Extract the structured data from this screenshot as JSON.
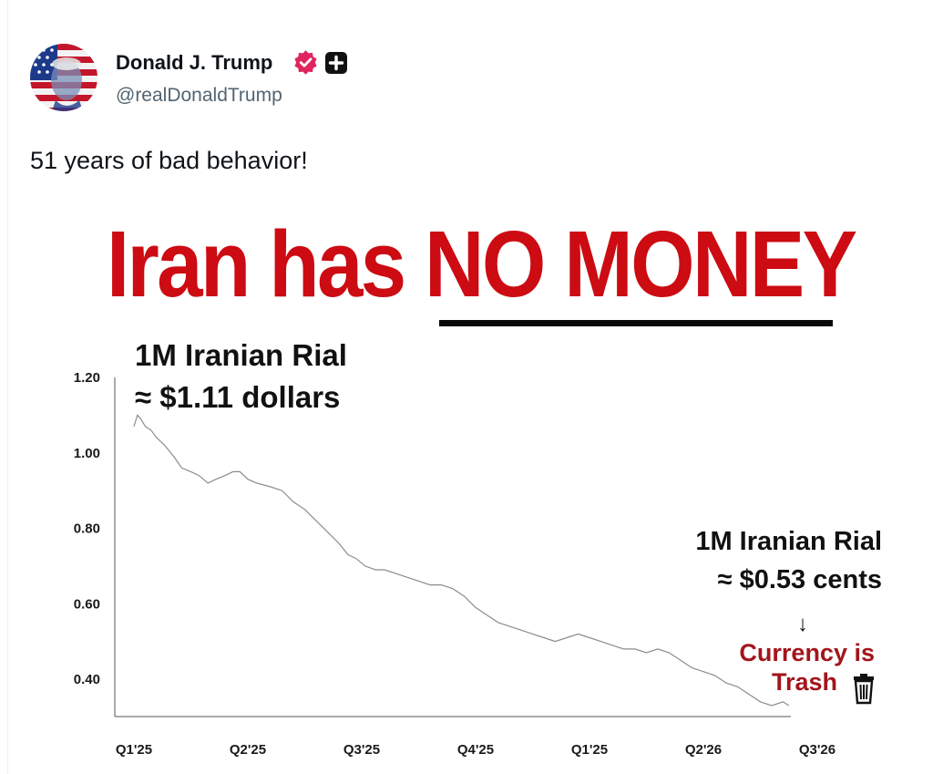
{
  "post": {
    "author_name": "Donald J. Trump",
    "author_handle": "@realDonaldTrump",
    "text": "51 years of bad behavior!",
    "badges": [
      "verified-badge-icon",
      "plus-badge-icon"
    ],
    "colors": {
      "verified": "#e0245e",
      "plus": "#111111",
      "handle": "#536471"
    }
  },
  "image": {
    "headline_prefix": "Iran has ",
    "headline_emphasis": "NO MONEY",
    "headline_color": "#cc0b12"
  },
  "chart_data": {
    "type": "line",
    "title": "",
    "xlabel": "",
    "ylabel": "",
    "x_ticks": [
      "Q1'25",
      "Q2'25",
      "Q3'25",
      "Q4'25",
      "Q1'25",
      "Q2'26",
      "Q3'26"
    ],
    "y_ticks": [
      "1.20",
      "1.00",
      "0.80",
      "0.60",
      "0.40"
    ],
    "ylim": [
      0.29,
      1.2
    ],
    "grid": false,
    "line_color": "#8c8c8c",
    "series": [
      {
        "values": [
          [
            0.0,
            1.07
          ],
          [
            0.03,
            1.1
          ],
          [
            0.06,
            1.09
          ],
          [
            0.1,
            1.07
          ],
          [
            0.15,
            1.06
          ],
          [
            0.2,
            1.04
          ],
          [
            0.27,
            1.02
          ],
          [
            0.35,
            0.99
          ],
          [
            0.42,
            0.96
          ],
          [
            0.5,
            0.95
          ],
          [
            0.57,
            0.94
          ],
          [
            0.65,
            0.92
          ],
          [
            0.72,
            0.93
          ],
          [
            0.8,
            0.94
          ],
          [
            0.87,
            0.95
          ],
          [
            0.93,
            0.95
          ],
          [
            1.0,
            0.93
          ],
          [
            1.08,
            0.92
          ],
          [
            1.2,
            0.91
          ],
          [
            1.3,
            0.9
          ],
          [
            1.4,
            0.87
          ],
          [
            1.5,
            0.85
          ],
          [
            1.6,
            0.82
          ],
          [
            1.7,
            0.79
          ],
          [
            1.8,
            0.76
          ],
          [
            1.88,
            0.73
          ],
          [
            1.95,
            0.72
          ],
          [
            2.03,
            0.7
          ],
          [
            2.12,
            0.69
          ],
          [
            2.2,
            0.69
          ],
          [
            2.3,
            0.68
          ],
          [
            2.4,
            0.67
          ],
          [
            2.5,
            0.66
          ],
          [
            2.6,
            0.65
          ],
          [
            2.7,
            0.65
          ],
          [
            2.8,
            0.64
          ],
          [
            2.9,
            0.62
          ],
          [
            3.0,
            0.59
          ],
          [
            3.1,
            0.57
          ],
          [
            3.2,
            0.55
          ],
          [
            3.3,
            0.54
          ],
          [
            3.4,
            0.53
          ],
          [
            3.5,
            0.52
          ],
          [
            3.6,
            0.51
          ],
          [
            3.7,
            0.5
          ],
          [
            3.8,
            0.51
          ],
          [
            3.9,
            0.52
          ],
          [
            4.0,
            0.51
          ],
          [
            4.1,
            0.5
          ],
          [
            4.2,
            0.49
          ],
          [
            4.3,
            0.48
          ],
          [
            4.4,
            0.48
          ],
          [
            4.5,
            0.47
          ],
          [
            4.6,
            0.48
          ],
          [
            4.7,
            0.47
          ],
          [
            4.8,
            0.45
          ],
          [
            4.9,
            0.43
          ],
          [
            5.0,
            0.42
          ],
          [
            5.1,
            0.41
          ],
          [
            5.2,
            0.39
          ],
          [
            5.3,
            0.38
          ],
          [
            5.4,
            0.36
          ],
          [
            5.5,
            0.34
          ],
          [
            5.6,
            0.33
          ],
          [
            5.7,
            0.34
          ],
          [
            5.75,
            0.33
          ]
        ]
      }
    ],
    "annotations": [
      {
        "line1": "1M Iranian Rial",
        "line2": "≈ $1.11 dollars",
        "points_to": [
          0.03,
          1.1
        ]
      },
      {
        "line1": "1M Iranian Rial",
        "line2": "≈ $0.53 cents",
        "arrow": "↓",
        "note_line1": "Currency is",
        "note_line2": "Trash",
        "note_icon": "trash-can-icon",
        "note_color": "#a3151b"
      }
    ]
  }
}
